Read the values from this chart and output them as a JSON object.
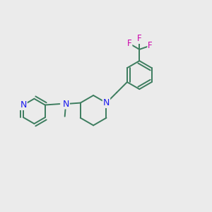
{
  "background_color": "#ebebeb",
  "bond_color": "#3d7d5f",
  "N_color": "#1a1aee",
  "F_color": "#cc00aa",
  "line_width": 1.4,
  "figsize": [
    3.0,
    3.0
  ],
  "dpi": 100,
  "xlim": [
    0,
    10
  ],
  "ylim": [
    0,
    10
  ]
}
